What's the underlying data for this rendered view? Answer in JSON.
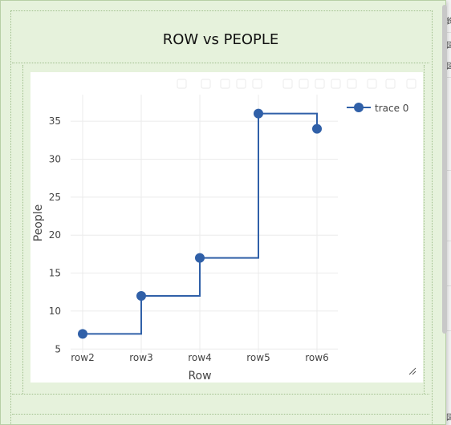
{
  "dialog": {
    "title": "ROW vs PEOPLE"
  },
  "background": {
    "glyphs": [
      "鉤",
      "図",
      "図",
      "図"
    ]
  },
  "modebar": {
    "icons": [
      "camera-icon",
      "zoom-icon",
      "pan-icon",
      "zoom-in-icon",
      "zoom-out-icon",
      "autoscale-icon",
      "reset-axes-icon",
      "spike-lines-icon",
      "hover-closest-icon",
      "hover-compare-icon",
      "plotly-logo-icon"
    ]
  },
  "chart_data": {
    "type": "line",
    "line_shape": "hv",
    "categories": [
      "row2",
      "row3",
      "row4",
      "row5",
      "row6"
    ],
    "series": [
      {
        "name": "trace 0",
        "values": [
          7,
          12,
          17,
          36,
          34
        ],
        "color": "#3060a8"
      }
    ],
    "title": "",
    "xlabel": "Row",
    "ylabel": "People",
    "ylim": [
      4.5,
      38.5
    ],
    "yticks": [
      5,
      10,
      15,
      20,
      25,
      30,
      35
    ],
    "grid": true,
    "legend": "top-right"
  }
}
